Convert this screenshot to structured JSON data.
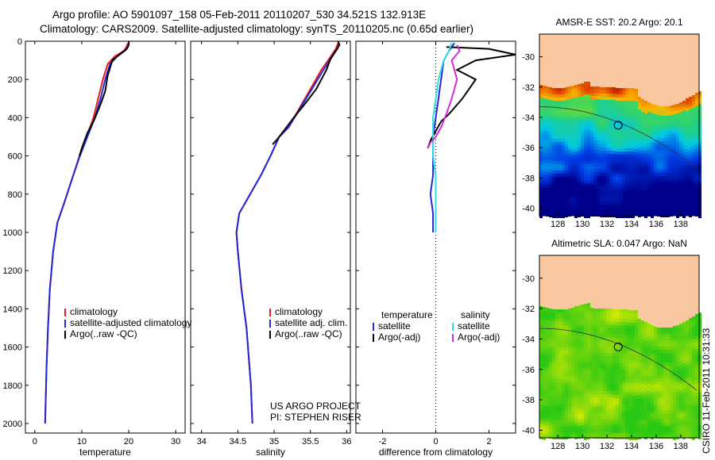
{
  "header": {
    "title_line1": "Argo profile: AO 5901097_158 05-Feb-2011 20110207_530 34.521S 132.913E",
    "title_line2": "Climatology: CARS2009. Satellite-adjusted climatology: synTS_20110205.nc (0.65d earlier)"
  },
  "colors": {
    "red": "#e41a1c",
    "blue": "#1f2ad6",
    "black": "#000000",
    "cyan": "#2fe0e0",
    "magenta": "#d22cd6",
    "land": "#f9c8a0"
  },
  "chart_data": [
    {
      "type": "line",
      "id": "temperature",
      "xlabel": "temperature",
      "xlim": [
        -2,
        32
      ],
      "ylim": [
        2050,
        0
      ],
      "xticks": [
        0,
        10,
        20,
        30
      ],
      "yticks": [
        0,
        200,
        400,
        600,
        800,
        1000,
        1200,
        1400,
        1600,
        1800,
        2000
      ],
      "legend": {
        "placement": "lower-center",
        "entries": [
          "climatology",
          "satellite-adjusted climatology",
          "Argo(..raw -QC)"
        ]
      },
      "series": [
        {
          "name": "climatology",
          "color": "red",
          "x": [
            19.8,
            19.5,
            19.0,
            17.0,
            15.5,
            14.5,
            13.5,
            12.5,
            11.0,
            9.5,
            8.2,
            6.2,
            4.8,
            3.9,
            3.2,
            2.8,
            2.5,
            2.3,
            2.2
          ],
          "y": [
            10,
            30,
            50,
            80,
            120,
            200,
            300,
            400,
            500,
            600,
            700,
            850,
            950,
            1100,
            1300,
            1500,
            1700,
            1900,
            2000
          ]
        },
        {
          "name": "satellite-adjusted climatology",
          "color": "blue",
          "x": [
            20.0,
            19.8,
            19.2,
            17.5,
            16.0,
            15.0,
            14.0,
            12.8,
            11.2,
            9.6,
            8.2,
            6.2,
            4.8,
            3.9,
            3.2,
            2.8,
            2.5,
            2.3,
            2.2
          ],
          "y": [
            10,
            30,
            50,
            80,
            120,
            200,
            300,
            400,
            500,
            600,
            700,
            850,
            950,
            1100,
            1300,
            1500,
            1700,
            1900,
            2000
          ]
        },
        {
          "name": "Argo(..raw -QC)",
          "color": "black",
          "x": [
            20.0,
            20.0,
            19.6,
            18.5,
            16.5,
            15.5,
            15.0,
            14.0,
            12.5,
            11.2,
            10.0,
            9.5
          ],
          "y": [
            0,
            20,
            40,
            60,
            100,
            180,
            260,
            330,
            420,
            480,
            560,
            600
          ]
        }
      ]
    },
    {
      "type": "line",
      "id": "salinity",
      "xlabel": "salinity",
      "xlim": [
        33.85,
        36.05
      ],
      "ylim": [
        2050,
        0
      ],
      "xticks": [
        34,
        34.5,
        35,
        35.5,
        36
      ],
      "annotation": [
        "US ARGO PROJECT",
        "PI: STEPHEN RISER"
      ],
      "legend": {
        "placement": "lower-center",
        "entries": [
          "climatology",
          "satellite adj. clim.",
          "Argo(..raw -QC)"
        ]
      },
      "series": [
        {
          "name": "climatology",
          "color": "red",
          "x": [
            35.88,
            35.85,
            35.78,
            35.65,
            35.5,
            35.35,
            35.2,
            35.07,
            34.95,
            34.82,
            34.67,
            34.52,
            34.48,
            34.5,
            34.55,
            34.62,
            34.68,
            34.7
          ],
          "y": [
            10,
            40,
            80,
            150,
            250,
            350,
            450,
            500,
            600,
            700,
            800,
            900,
            1000,
            1100,
            1300,
            1500,
            1800,
            2000
          ]
        },
        {
          "name": "satellite adj. clim.",
          "color": "blue",
          "x": [
            35.9,
            35.87,
            35.8,
            35.68,
            35.52,
            35.36,
            35.2,
            35.07,
            34.95,
            34.82,
            34.67,
            34.52,
            34.48,
            34.5,
            34.55,
            34.62,
            34.68,
            34.7
          ],
          "y": [
            10,
            40,
            80,
            150,
            250,
            350,
            450,
            500,
            600,
            700,
            800,
            900,
            1000,
            1100,
            1300,
            1500,
            1800,
            2000
          ]
        },
        {
          "name": "Argo(..raw -QC)",
          "color": "black",
          "x": [
            35.88,
            35.9,
            35.85,
            35.78,
            35.72,
            35.58,
            35.42,
            35.27,
            35.15,
            35.05,
            34.98
          ],
          "y": [
            0,
            20,
            50,
            90,
            150,
            250,
            330,
            400,
            460,
            510,
            540
          ]
        }
      ]
    },
    {
      "type": "line",
      "id": "difference",
      "xlabel": "difference from climatology",
      "xlim": [
        -3,
        3
      ],
      "ylim": [
        2050,
        0
      ],
      "xticks": [
        -2,
        0,
        2
      ],
      "legend": {
        "placement": "lower-center",
        "columns": [
          {
            "header": "temperature",
            "entries": [
              "satellite",
              "Argo(-adj)"
            ]
          },
          {
            "header": "salinity",
            "entries": [
              "satellite",
              "Argo(-adj)"
            ]
          }
        ]
      },
      "series": [
        {
          "name": "temperature satellite",
          "color": "blue",
          "x": [
            0.7,
            0.5,
            0.3,
            0.2,
            0.1,
            0.0,
            -0.1,
            -0.1,
            -0.1,
            -0.2,
            -0.1,
            -0.1
          ],
          "y": [
            10,
            50,
            100,
            200,
            300,
            400,
            500,
            600,
            700,
            800,
            900,
            1000
          ]
        },
        {
          "name": "temperature Argo(-adj)",
          "color": "black",
          "x": [
            0.4,
            2.0,
            3.0,
            1.5,
            0.8,
            1.5,
            1.0,
            0.5,
            0.2,
            0.0,
            -0.2,
            -0.3
          ],
          "y": [
            30,
            40,
            70,
            100,
            150,
            200,
            300,
            380,
            420,
            470,
            520,
            560
          ]
        },
        {
          "name": "salinity satellite",
          "color": "cyan",
          "x": [
            0.6,
            0.5,
            0.3,
            0.1,
            0.0,
            -0.1,
            -0.1,
            -0.1,
            0.0,
            0.0,
            0.0,
            0.0
          ],
          "y": [
            10,
            50,
            100,
            200,
            300,
            400,
            500,
            600,
            700,
            800,
            900,
            1000
          ]
        },
        {
          "name": "salinity Argo(-adj)",
          "color": "magenta",
          "x": [
            0.8,
            0.9,
            0.6,
            0.8,
            0.6,
            0.4,
            0.2,
            0.0,
            -0.2,
            -0.3
          ],
          "y": [
            20,
            50,
            100,
            200,
            300,
            380,
            450,
            500,
            530,
            560
          ]
        }
      ]
    },
    {
      "type": "heatmap",
      "id": "sst-map",
      "title": "AMSR-E SST: 20.2 Argo: 20.1",
      "xlim": [
        126.5,
        139.5
      ],
      "ylim": [
        -40.5,
        -28.5
      ],
      "xticks": [
        128,
        130,
        132,
        134,
        136,
        138
      ],
      "yticks": [
        -30,
        -32,
        -34,
        -36,
        -38,
        -40
      ],
      "marker": {
        "lon": 132.913,
        "lat": -34.521
      }
    },
    {
      "type": "heatmap",
      "id": "sla-map",
      "title": "Altimetric SLA: 0.047 Argo: NaN",
      "xlim": [
        126.5,
        139.5
      ],
      "ylim": [
        -40.5,
        -28.5
      ],
      "xticks": [
        128,
        130,
        132,
        134,
        136,
        138
      ],
      "yticks": [
        -30,
        -32,
        -34,
        -36,
        -38,
        -40
      ],
      "marker": {
        "lon": 132.913,
        "lat": -34.521
      }
    }
  ],
  "footer": {
    "stamp": "CSIRO 11-Feb-2011 10:31:33"
  }
}
